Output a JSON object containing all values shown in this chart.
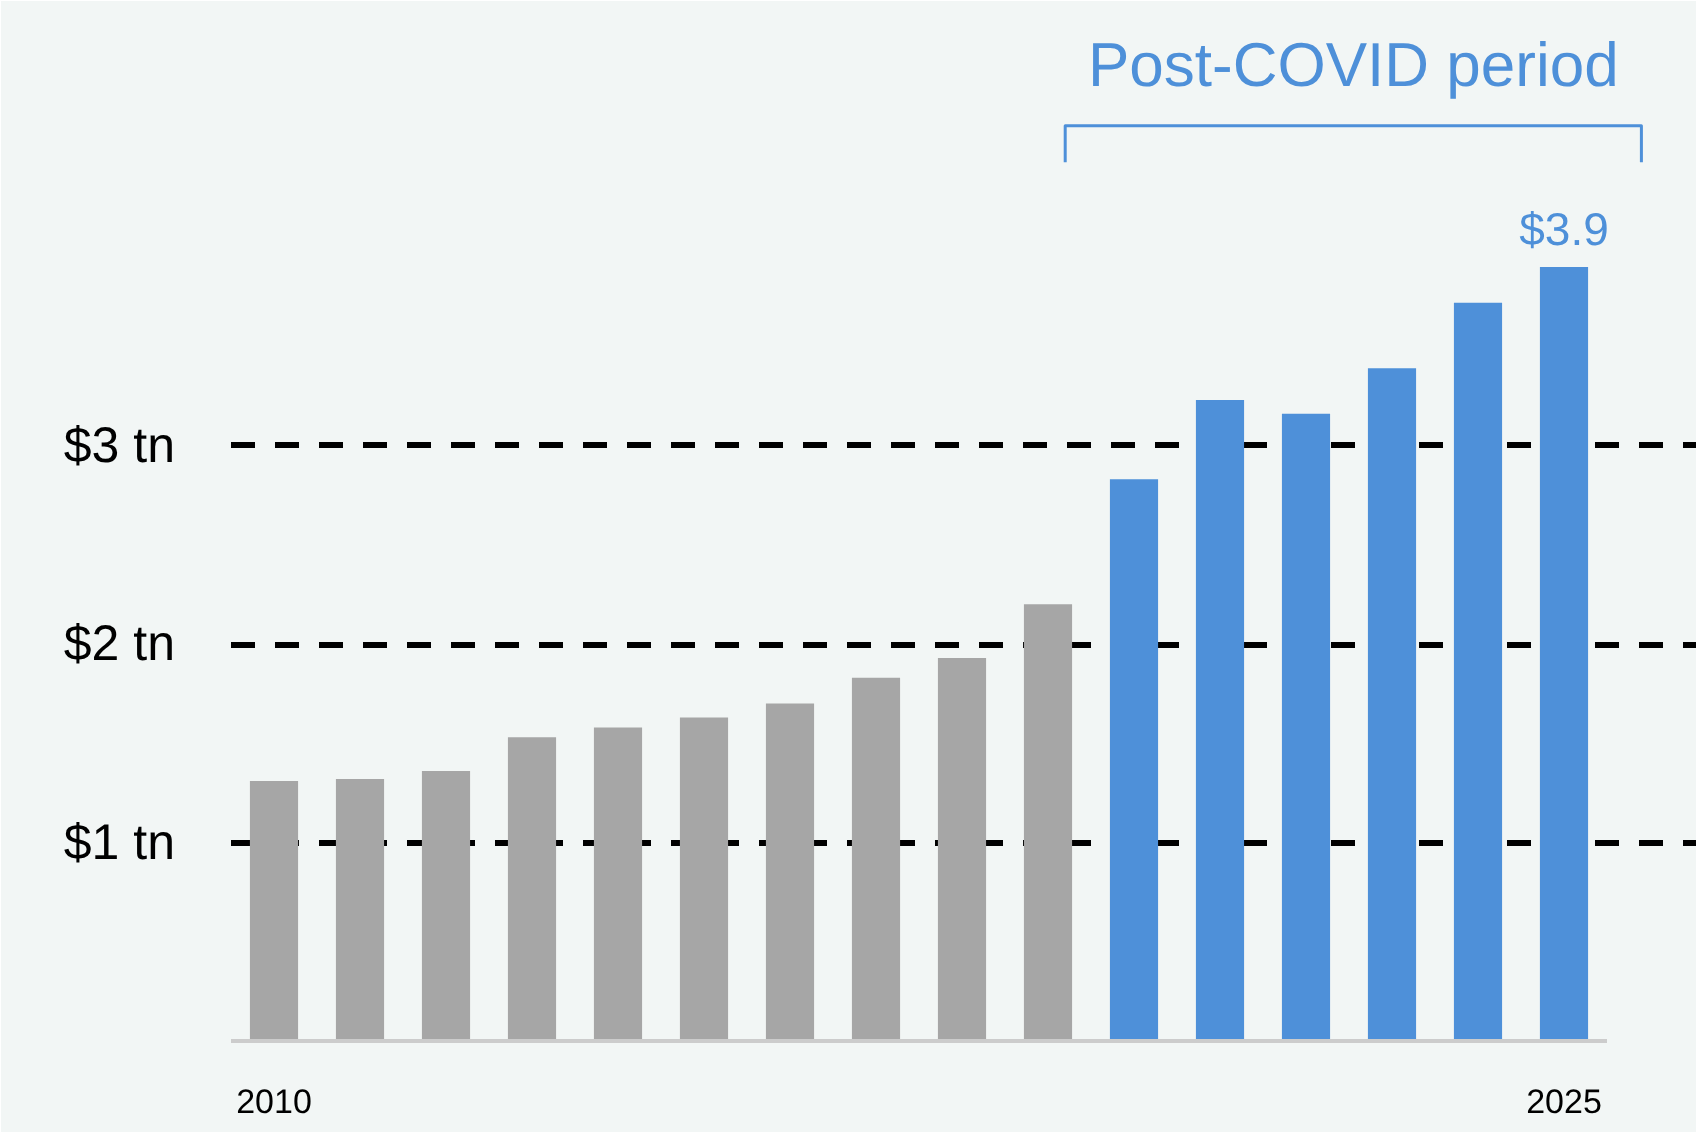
{
  "chart_data": {
    "type": "bar",
    "categories": [
      "2010",
      null,
      null,
      null,
      null,
      null,
      null,
      null,
      null,
      null,
      null,
      null,
      null,
      null,
      null,
      "2025"
    ],
    "series": [
      {
        "color": "#a6a6a6",
        "values": [
          1.31,
          1.32,
          1.36,
          1.53,
          1.58,
          1.63,
          1.7,
          1.83,
          1.93,
          2.2,
          null,
          null,
          null,
          null,
          null,
          null
        ]
      },
      {
        "color": "#4e90d9",
        "values": [
          null,
          null,
          null,
          null,
          null,
          null,
          null,
          null,
          null,
          null,
          2.83,
          3.23,
          3.16,
          3.39,
          3.72,
          3.9
        ],
        "value_labels": [
          null,
          null,
          null,
          null,
          null,
          null,
          null,
          null,
          null,
          null,
          null,
          null,
          null,
          null,
          null,
          "$3.9"
        ]
      }
    ],
    "ylim": [
      0,
      5.24
    ],
    "yticks": [
      {
        "value": 1,
        "label": "$1 tn"
      },
      {
        "value": 2,
        "label": "$2 tn"
      },
      {
        "value": 3,
        "label": "$3 tn"
      }
    ],
    "grid": "y",
    "line_style": "dashed",
    "annotations": [
      "Post-COVID period"
    ]
  }
}
